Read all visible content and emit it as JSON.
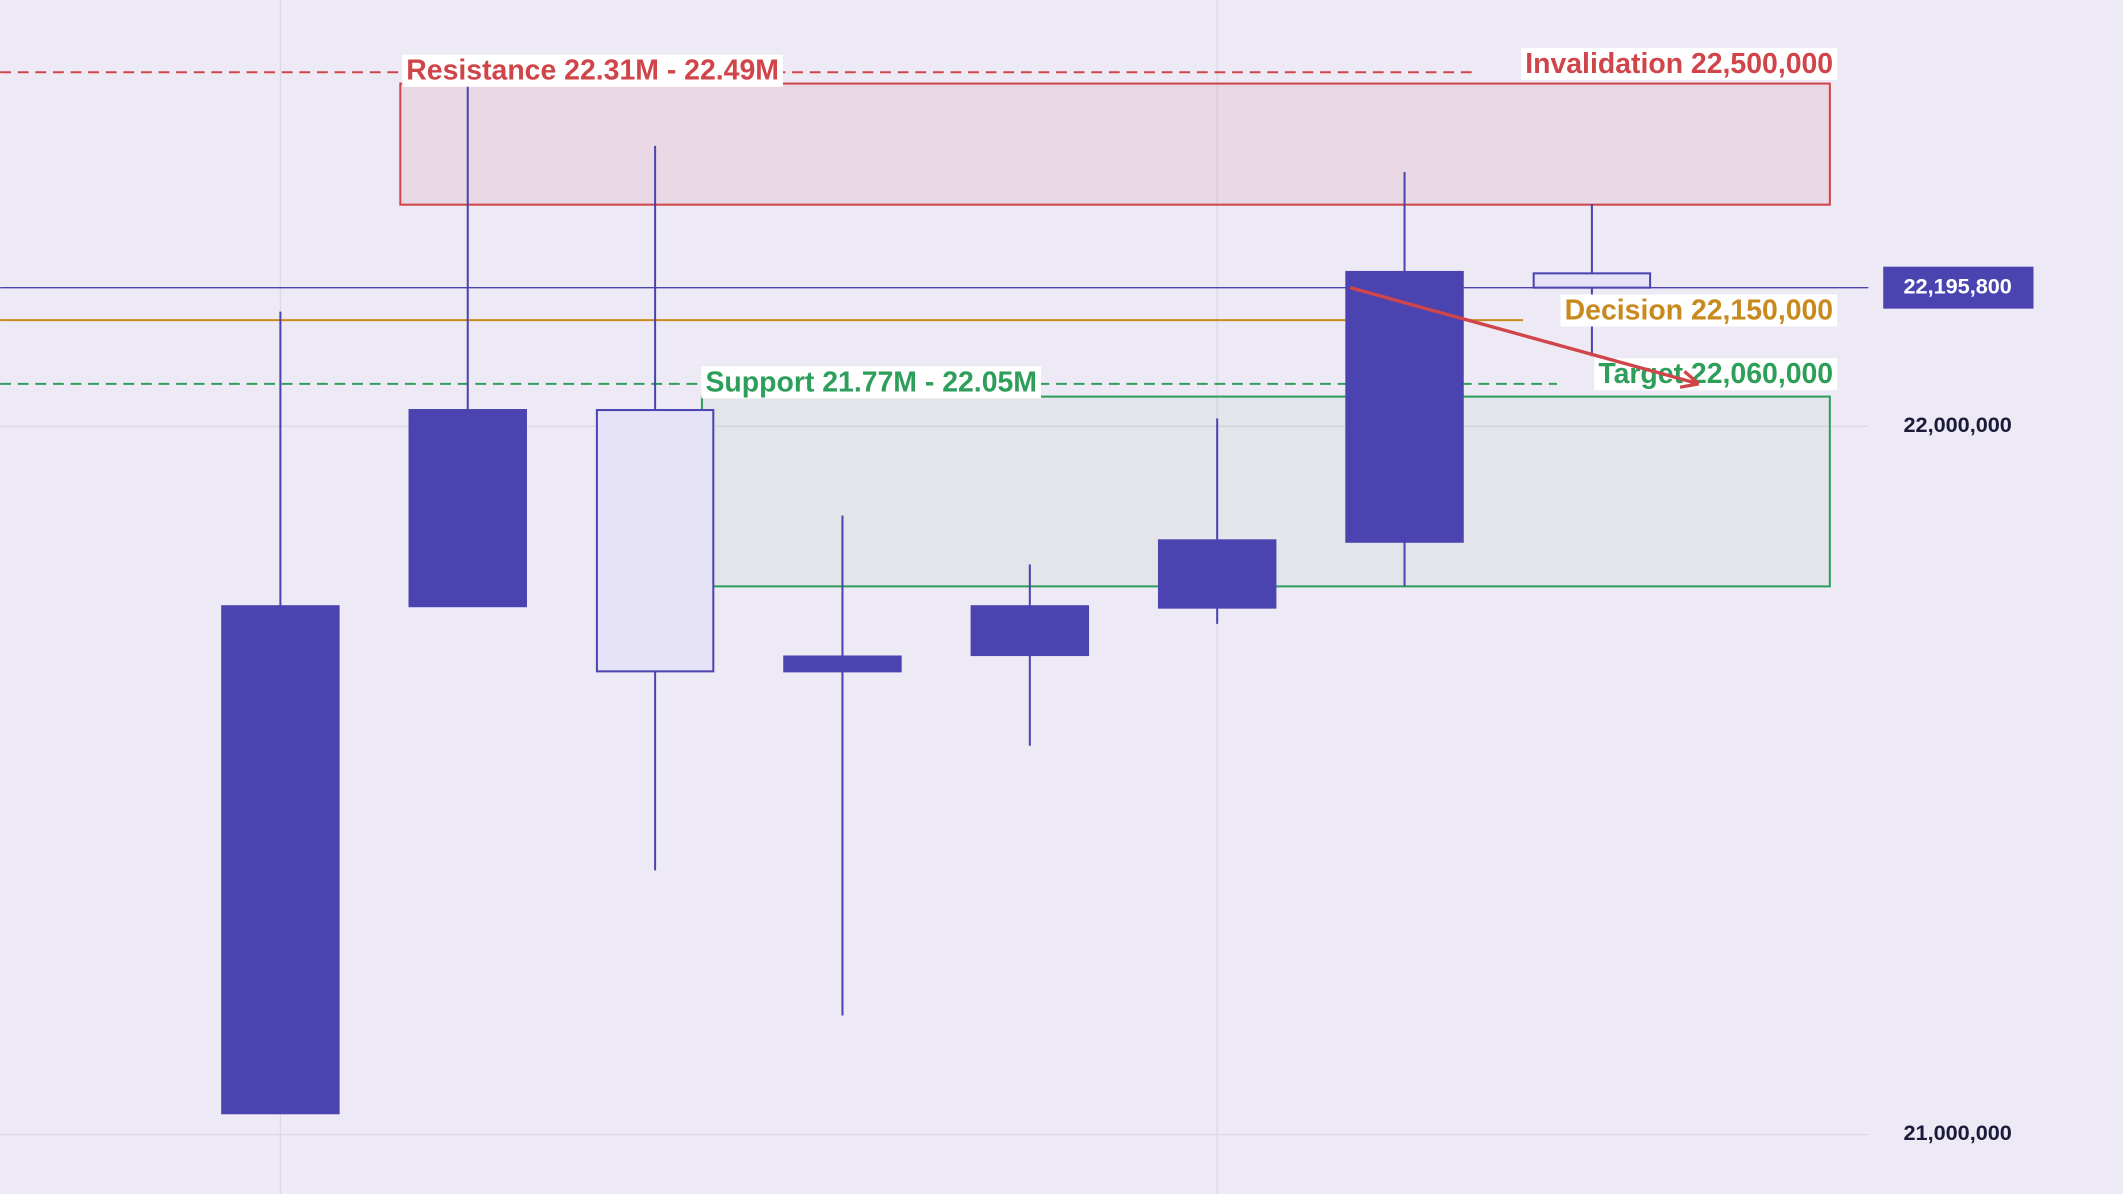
{
  "chart_data": {
    "type": "candlestick",
    "series": {
      "open": [
        21030000,
        21746000,
        22023000,
        21654000,
        21677000,
        21744000,
        21837000,
        22216000
      ],
      "high": [
        22162000,
        22484000,
        22396000,
        21874000,
        21805000,
        22011000,
        22359000,
        22314000
      ],
      "low": [
        21030000,
        21746000,
        21373000,
        21168000,
        21549000,
        21721000,
        21774000,
        22099000
      ],
      "close": [
        21746000,
        22023000,
        21654000,
        21675000,
        21746000,
        21839000,
        22218000,
        22195800
      ],
      "increasing_color": "#4b44b0",
      "decreasing_color": "#e6e2f7",
      "line_color": "#4b44b0"
    },
    "ylim": [
      20916000,
      22602000
    ],
    "yticks": [
      {
        "value": 21000000,
        "label": "21,000,000"
      },
      {
        "value": 22000000,
        "label": "22,000,000"
      }
    ],
    "grid": true,
    "zones": [
      {
        "label": "Resistance 22.31M - 22.49M",
        "low": 22313000,
        "high": 22484000,
        "color": "#d0454a"
      },
      {
        "label": "Support 21.77M - 22.05M",
        "low": 21774000,
        "high": 22042000,
        "color": "#2e9e5b"
      }
    ],
    "levels": [
      {
        "label": "Invalidation 22,500,000",
        "value": 22500000,
        "color": "#d0454a",
        "dashed": true
      },
      {
        "label": "Decision 22,150,000",
        "value": 22150000,
        "color": "#c88a1e",
        "dashed": false
      },
      {
        "label": "Target 22,060,000",
        "value": 22060000,
        "color": "#2e9e5b",
        "dashed": true
      }
    ],
    "current_price": {
      "value": 22195800,
      "label": "22,195,800",
      "color": "#4b44b0"
    }
  }
}
